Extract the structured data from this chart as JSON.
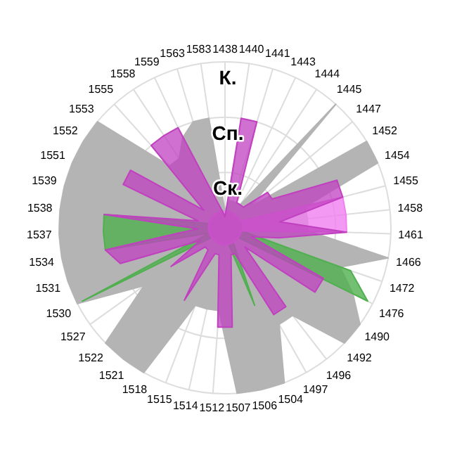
{
  "chart_data": {
    "type": "radar",
    "categories": [
      "1438",
      "1440",
      "1441",
      "1443",
      "1444",
      "1445",
      "1447",
      "1452",
      "1454",
      "1455",
      "1458",
      "1461",
      "1466",
      "1472",
      "1476",
      "1490",
      "1492",
      "1496",
      "1497",
      "1504",
      "1506",
      "1507",
      "1512",
      "1514",
      "1515",
      "1518",
      "1521",
      "1522",
      "1527",
      "1530",
      "1531",
      "1534",
      "1537",
      "1538",
      "1539",
      "1551",
      "1552",
      "1553",
      "1555",
      "1558",
      "1559",
      "1563",
      "1583"
    ],
    "ylim": [
      0,
      3
    ],
    "yticks": [
      {
        "value": 1,
        "label": "Ск."
      },
      {
        "value": 2,
        "label": "Сп."
      },
      {
        "value": 3,
        "label": "К."
      }
    ],
    "grid": true,
    "series": [
      {
        "color": "#b4b4b4",
        "values": [
          0.3,
          0.5,
          0.5,
          0.5,
          0.5,
          3,
          0.6,
          3,
          3,
          1.5,
          1.5,
          1.5,
          3,
          2.2,
          2.6,
          3,
          3,
          2,
          2,
          3,
          3,
          3,
          1.5,
          1.5,
          1.5,
          3,
          3,
          3,
          1.8,
          3,
          3,
          3,
          3,
          3,
          3,
          3,
          3,
          3,
          1.5,
          1.5,
          1.8,
          2,
          2
        ]
      },
      {
        "color": "#50b050",
        "values": [
          0.3,
          0.3,
          0.3,
          0.3,
          0.3,
          0.3,
          0.3,
          0.3,
          0.3,
          0.3,
          0.3,
          0.3,
          0.3,
          2.4,
          2.9,
          0.3,
          0.3,
          0.3,
          0.3,
          1.5,
          0.3,
          0.3,
          0.3,
          0.3,
          0.3,
          0.3,
          0.3,
          0.3,
          0.3,
          2.9,
          0.3,
          2.2,
          2.2,
          2.2,
          0.3,
          0.3,
          0.3,
          0.3,
          0.3,
          0.3,
          0.3,
          0.3,
          0.3
        ]
      },
      {
        "color": "#f080f0",
        "values": [
          0.3,
          0.3,
          0.3,
          0.3,
          0.3,
          0.3,
          0.3,
          0.3,
          0.3,
          2.2,
          2.2,
          2.2,
          0.3,
          0.3,
          0.3,
          0.3,
          0.3,
          0.3,
          0.3,
          0.3,
          0.3,
          0.3,
          0.3,
          0.3,
          0.3,
          0.3,
          0.3,
          0.3,
          0.3,
          0.3,
          0.3,
          0.3,
          0.3,
          0.3,
          0.3,
          0.3,
          0.3,
          0.3,
          0.3,
          0.3,
          0.3,
          0.3,
          0.3
        ]
      },
      {
        "color": "#c040c0",
        "values": [
          0.2,
          2,
          2,
          0.5,
          0.5,
          0.5,
          1,
          1,
          2.2,
          2.2,
          1,
          2.2,
          1,
          0.5,
          2,
          2,
          0.5,
          1.8,
          1.8,
          0.5,
          0.5,
          1.8,
          1.8,
          0.5,
          0.5,
          1.5,
          0.5,
          0.5,
          1.2,
          0.5,
          2,
          2.2,
          0.5,
          2.2,
          0.5,
          2,
          2,
          0.5,
          2,
          2,
          2,
          0.5,
          0.3
        ]
      }
    ]
  }
}
